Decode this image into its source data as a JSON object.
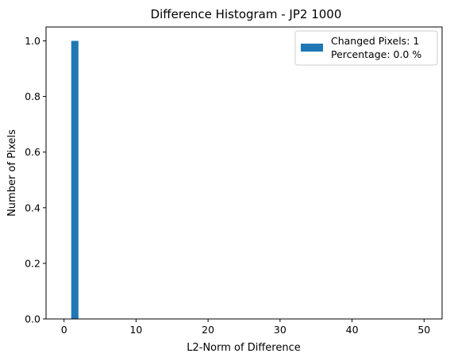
{
  "chart_data": {
    "type": "bar",
    "title": "Difference Histogram - JP2 1000",
    "xlabel": "L2-Norm of Difference",
    "ylabel": "Number of Pixels",
    "xlim": [
      -2.5,
      52.5
    ],
    "ylim": [
      0.0,
      1.05
    ],
    "xticks": [
      0,
      10,
      20,
      30,
      40,
      50
    ],
    "xtick_labels": [
      "0",
      "10",
      "20",
      "30",
      "40",
      "50"
    ],
    "yticks": [
      0.0,
      0.2,
      0.4,
      0.6,
      0.8,
      1.0
    ],
    "ytick_labels": [
      "0.0",
      "0.2",
      "0.4",
      "0.6",
      "0.8",
      "1.0"
    ],
    "bins": [
      {
        "x_start": 1.0,
        "x_end": 2.0,
        "value": 1
      }
    ],
    "bar_color": "#1f77b4",
    "grid": false,
    "legend_position": "top-right",
    "legend": {
      "line1": "Changed Pixels: 1",
      "line2": "Percentage: 0.0 %"
    }
  }
}
